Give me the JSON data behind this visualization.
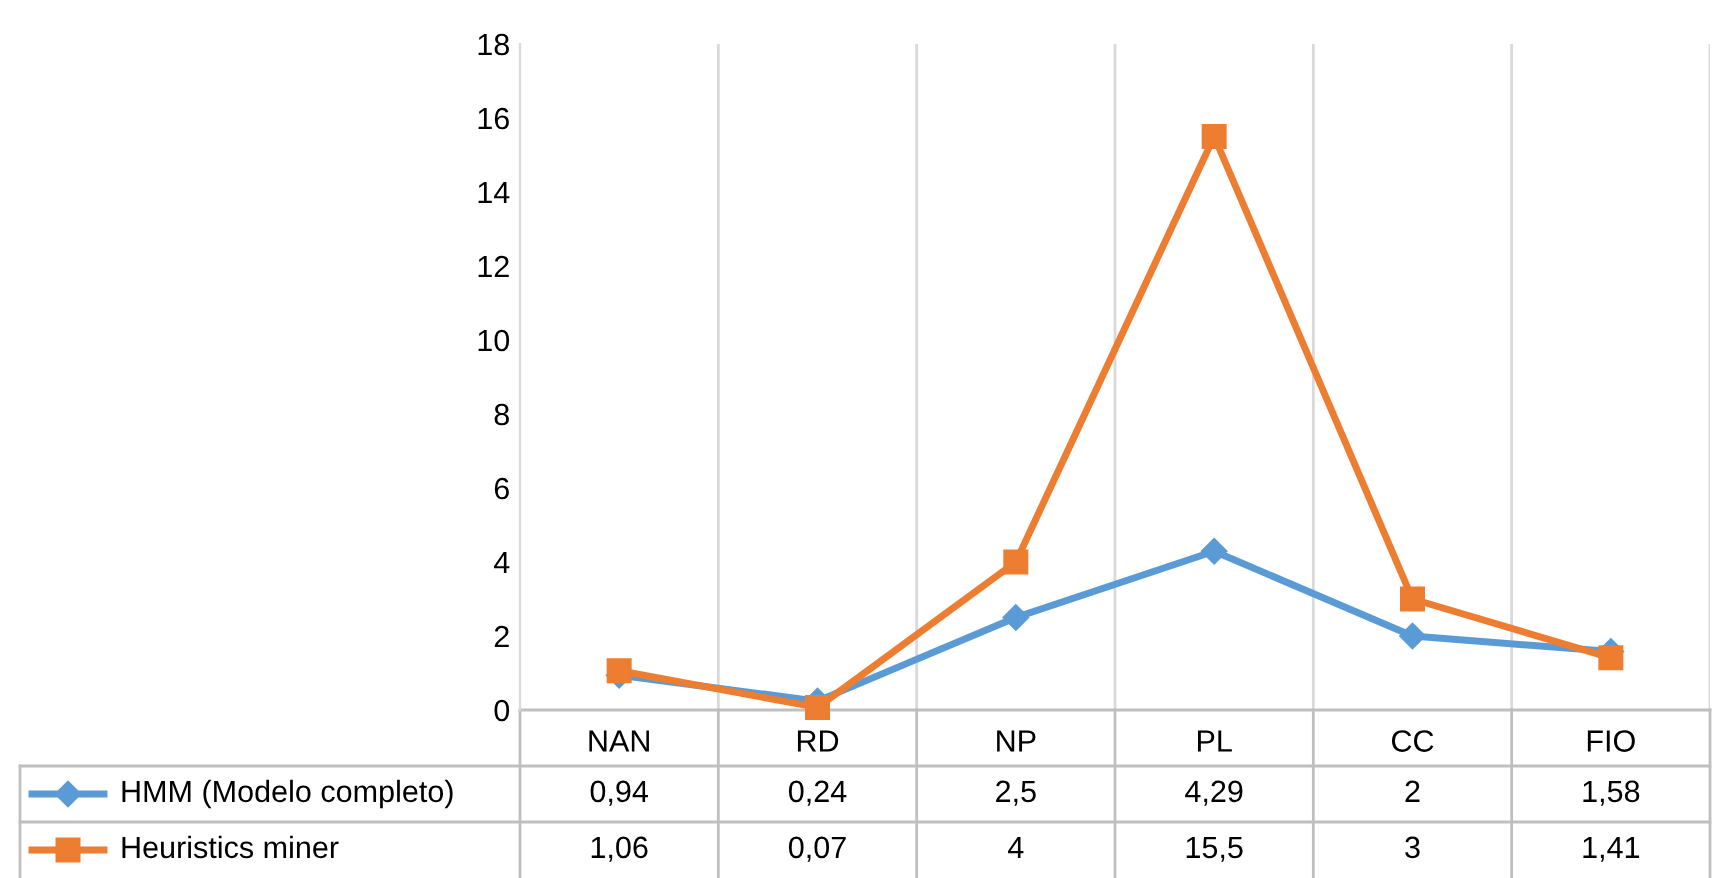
{
  "chart_data": {
    "type": "line",
    "categories": [
      "NAN",
      "RD",
      "NP",
      "PL",
      "CC",
      "FIO"
    ],
    "series": [
      {
        "name": "HMM (Modelo completo)",
        "color": "#5b9bd5",
        "marker": "diamond",
        "values": [
          0.94,
          0.24,
          2.5,
          4.29,
          2,
          1.58
        ],
        "value_labels": [
          "0,94",
          "0,24",
          "2,5",
          "4,29",
          "2",
          "1,58"
        ]
      },
      {
        "name": "Heuristics miner",
        "color": "#ed7d31",
        "marker": "square",
        "values": [
          1.06,
          0.07,
          4,
          15.5,
          3,
          1.41
        ],
        "value_labels": [
          "1,06",
          "0,07",
          "4",
          "15,5",
          "3",
          "1,41"
        ]
      }
    ],
    "ylim": [
      0,
      18
    ],
    "yticks": [
      0,
      2,
      4,
      6,
      8,
      10,
      12,
      14,
      16,
      18
    ],
    "grid": "x",
    "legend": "bottom",
    "data_labels": true,
    "line_style": "solid"
  }
}
